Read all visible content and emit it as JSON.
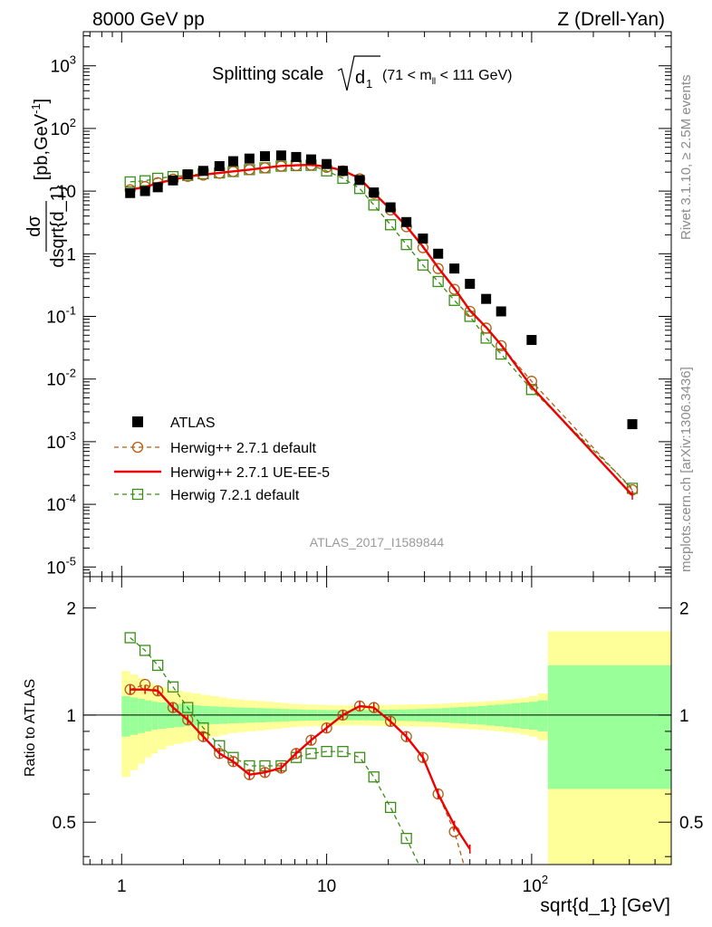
{
  "header": {
    "left": "8000 GeV pp",
    "right": "Z (Drell-Yan)"
  },
  "side_texts": {
    "rivet": "Rivet 3.1.10, ≥ 2.5M events",
    "mcplots": "mcplots.cern.ch [arXiv:1306.3436]"
  },
  "analysis_id": "ATLAS_2017_I1589844",
  "colors": {
    "atlas": "#000000",
    "herwig_pp_default": "#b25d13",
    "herwig_pp_ueee5": "#ee0000",
    "herwig_721": "#3a8f16",
    "band_inner": "#99ff99",
    "band_outer": "#ffff99"
  },
  "chart_data": [
    {
      "type": "scatter",
      "title": "Splitting scale",
      "title_math": "√d₁",
      "title_range": "(71 < m_ll < 111 GeV)",
      "xlabel": "sqrt{d_1} [GeV]",
      "ylabel": "dσ/dsqrt{d_1} [pb,GeV⁻¹]",
      "x_scale": "log",
      "y_scale": "log",
      "xlim": [
        0.65,
        480
      ],
      "ylim": [
        7e-06,
        3500
      ],
      "x_tick_labels": [
        "1",
        "10",
        "10^2"
      ],
      "y_tick_labels": [
        "10^-5",
        "10^-4",
        "10^-3",
        "10^-2",
        "10^-1",
        "1",
        "10",
        "10^2",
        "10^3"
      ],
      "legend_position": "lower-left",
      "series": [
        {
          "name": "ATLAS",
          "style": "black squares",
          "x": [
            1.1,
            1.3,
            1.5,
            1.78,
            2.1,
            2.5,
            3.0,
            3.5,
            4.2,
            5.0,
            6.0,
            7.1,
            8.4,
            10.0,
            12.0,
            14.5,
            17.0,
            20.5,
            24.5,
            29.5,
            35.0,
            42.0,
            50.0,
            60.0,
            71.0,
            100.0,
            310.0
          ],
          "y": [
            9.3,
            10.0,
            11.5,
            14.8,
            18.5,
            21.0,
            25.0,
            30.0,
            33.0,
            36.0,
            37.0,
            35.0,
            32.0,
            27.0,
            21.0,
            15.0,
            9.5,
            5.5,
            3.2,
            1.75,
            1.0,
            0.58,
            0.33,
            0.19,
            0.12,
            0.042,
            0.0019
          ]
        },
        {
          "name": "Herwig++ 2.7.1 default",
          "style": "brown dashed, circles",
          "x": [
            1.1,
            1.3,
            1.5,
            1.78,
            2.1,
            2.5,
            3.0,
            3.5,
            4.2,
            5.0,
            6.0,
            7.1,
            8.4,
            10.0,
            12.0,
            14.5,
            17.0,
            20.5,
            24.5,
            29.5,
            35.0,
            42.0,
            50.0,
            60.0,
            71.0,
            100.0,
            310.0
          ],
          "y": [
            10.5,
            11.8,
            13.6,
            15.5,
            17.2,
            18.0,
            19.3,
            20.5,
            22.0,
            23.5,
            25.0,
            25.5,
            26.0,
            24.0,
            21.0,
            15.7,
            9.2,
            5.0,
            2.7,
            1.25,
            0.58,
            0.27,
            0.12,
            0.065,
            0.034,
            0.0092,
            0.00017
          ]
        },
        {
          "name": "Herwig++ 2.7.1 UE-EE-5",
          "style": "red solid line",
          "x": [
            1.1,
            1.3,
            1.5,
            1.78,
            2.1,
            2.5,
            3.0,
            3.5,
            4.2,
            5.0,
            6.0,
            7.1,
            8.4,
            10.0,
            12.0,
            14.5,
            17.0,
            20.5,
            24.5,
            29.5,
            35.0,
            42.0,
            50.0,
            60.0,
            71.0,
            100.0,
            310.0
          ],
          "y": [
            10.5,
            11.6,
            13.4,
            15.2,
            17.0,
            18.3,
            19.5,
            20.6,
            22.0,
            23.6,
            25.2,
            25.8,
            26.2,
            24.6,
            21.3,
            15.9,
            9.3,
            5.1,
            2.75,
            1.3,
            0.6,
            0.28,
            0.125,
            0.067,
            0.035,
            0.0075,
            0.00014
          ]
        },
        {
          "name": "Herwig 7.2.1 default",
          "style": "green dashed, open squares",
          "x": [
            1.1,
            1.3,
            1.5,
            1.78,
            2.1,
            2.5,
            3.0,
            3.5,
            4.2,
            5.0,
            6.0,
            7.1,
            8.4,
            10.0,
            12.0,
            14.5,
            17.0,
            20.5,
            24.5,
            29.5,
            35.0,
            42.0,
            50.0,
            60.0,
            71.0,
            100.0,
            310.0
          ],
          "y": [
            14.0,
            14.6,
            16.0,
            17.0,
            17.8,
            18.9,
            19.5,
            20.5,
            22.0,
            23.5,
            25.0,
            25.5,
            25.8,
            21.0,
            16.0,
            11.0,
            6.0,
            2.9,
            1.4,
            0.66,
            0.36,
            0.18,
            0.1,
            0.045,
            0.025,
            0.0068,
            0.00018
          ]
        }
      ]
    },
    {
      "type": "line",
      "ylabel": "Ratio to ATLAS",
      "x_scale": "log",
      "y_scale": "log",
      "xlim": [
        0.65,
        480
      ],
      "ylim": [
        0.38,
        2.45
      ],
      "y_tick_labels": [
        "0.5",
        "1",
        "2"
      ],
      "band_edges": [
        1.0,
        1.1,
        1.2,
        1.3,
        1.4,
        1.5,
        1.65,
        1.8,
        2.0,
        2.2,
        2.45,
        2.7,
        3.0,
        3.3,
        3.65,
        4.0,
        4.5,
        5.0,
        5.5,
        6.0,
        6.6,
        7.3,
        8.0,
        9.0,
        10.0,
        11.0,
        12.2,
        13.5,
        15.0,
        16.5,
        18.0,
        20.0,
        22.0,
        24.5,
        27.0,
        30.0,
        33.0,
        36.5,
        40.0,
        44.0,
        49.0,
        54.0,
        60.0,
        66.0,
        73.0,
        80.0,
        88.0,
        97.0,
        107.0,
        120.0,
        480.0
      ],
      "band_inner": [
        0.13,
        0.12,
        0.11,
        0.1,
        0.09,
        0.085,
        0.08,
        0.075,
        0.07,
        0.065,
        0.06,
        0.057,
        0.055,
        0.052,
        0.05,
        0.048,
        0.046,
        0.044,
        0.042,
        0.04,
        0.038,
        0.036,
        0.035,
        0.034,
        0.033,
        0.033,
        0.033,
        0.033,
        0.033,
        0.034,
        0.035,
        0.036,
        0.037,
        0.038,
        0.04,
        0.042,
        0.044,
        0.047,
        0.05,
        0.053,
        0.057,
        0.06,
        0.065,
        0.07,
        0.075,
        0.08,
        0.085,
        0.09,
        0.1,
        0.38
      ],
      "band_outer": [
        0.33,
        0.3,
        0.27,
        0.24,
        0.22,
        0.2,
        0.18,
        0.17,
        0.16,
        0.15,
        0.14,
        0.13,
        0.12,
        0.11,
        0.105,
        0.1,
        0.095,
        0.09,
        0.085,
        0.08,
        0.075,
        0.072,
        0.07,
        0.068,
        0.066,
        0.065,
        0.065,
        0.065,
        0.066,
        0.067,
        0.068,
        0.069,
        0.07,
        0.071,
        0.072,
        0.073,
        0.075,
        0.078,
        0.082,
        0.085,
        0.088,
        0.09,
        0.095,
        0.1,
        0.105,
        0.11,
        0.12,
        0.13,
        0.15,
        0.72
      ],
      "series": [
        {
          "name": "Herwig++ 2.7.1 default",
          "x": [
            1.1,
            1.3,
            1.5,
            1.78,
            2.1,
            2.5,
            3.0,
            3.5,
            4.2,
            5.0,
            6.0,
            7.1,
            8.4,
            10.0,
            12.0,
            14.5,
            17.0,
            20.5,
            24.5,
            29.5,
            35.0,
            42.0,
            48.0
          ],
          "y": [
            1.18,
            1.22,
            1.17,
            1.05,
            0.97,
            0.87,
            0.78,
            0.74,
            0.68,
            0.69,
            0.71,
            0.78,
            0.85,
            0.92,
            1.0,
            1.06,
            1.05,
            0.96,
            0.87,
            0.76,
            0.6,
            0.47,
            0.36
          ]
        },
        {
          "name": "Herwig++ 2.7.1 UE-EE-5",
          "x": [
            1.1,
            1.3,
            1.5,
            1.78,
            2.1,
            2.5,
            3.0,
            3.5,
            4.2,
            5.0,
            6.0,
            7.1,
            8.4,
            10.0,
            12.0,
            14.5,
            17.0,
            20.5,
            24.5,
            29.5,
            35.0,
            42.0,
            50.0
          ],
          "y": [
            1.18,
            1.18,
            1.17,
            1.05,
            0.97,
            0.87,
            0.78,
            0.74,
            0.68,
            0.69,
            0.71,
            0.78,
            0.85,
            0.92,
            1.0,
            1.06,
            1.05,
            0.96,
            0.87,
            0.76,
            0.6,
            0.49,
            0.42
          ]
        },
        {
          "name": "Herwig 7.2.1 default",
          "x": [
            1.1,
            1.3,
            1.5,
            1.78,
            2.1,
            2.5,
            3.0,
            3.5,
            4.2,
            5.0,
            6.0,
            7.1,
            8.4,
            10.0,
            12.0,
            14.5,
            17.0,
            20.5,
            24.5,
            29.5
          ],
          "y": [
            1.65,
            1.52,
            1.38,
            1.2,
            1.05,
            0.92,
            0.82,
            0.76,
            0.72,
            0.72,
            0.72,
            0.76,
            0.78,
            0.79,
            0.79,
            0.76,
            0.67,
            0.55,
            0.45,
            0.36
          ]
        }
      ]
    }
  ]
}
